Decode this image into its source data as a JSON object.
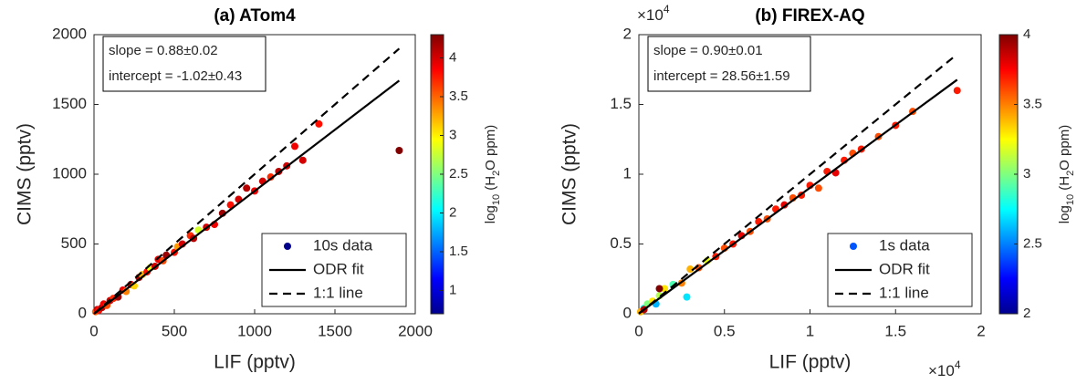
{
  "chart_data": [
    {
      "type": "scatter",
      "title": "(a) ATom4",
      "x_label": "LIF (pptv)",
      "y_label": "CIMS (pptv)",
      "xlim": [
        0,
        2000
      ],
      "ylim": [
        0,
        2000
      ],
      "xticks": [
        0,
        500,
        1000,
        1500,
        2000
      ],
      "yticks": [
        0,
        500,
        1000,
        1500,
        2000
      ],
      "annotations": [
        "slope = 0.88±0.02",
        "intercept = -1.02±0.43"
      ],
      "colorbar_label": [
        "log",
        "10",
        " (H",
        "2",
        "O ppm)"
      ],
      "clim": [
        0.7,
        4.3
      ],
      "cticks": [
        1,
        1.5,
        2,
        2.5,
        3,
        3.5,
        4
      ],
      "legend": "lower right",
      "series": [
        {
          "name": "10s data",
          "color": "#00008b",
          "x": [
            10,
            20,
            30,
            50,
            60,
            80,
            100,
            120,
            150,
            180,
            200,
            230,
            250,
            280,
            300,
            330,
            350,
            380,
            400,
            430,
            450,
            500,
            520,
            550,
            600,
            620,
            650,
            700,
            750,
            800,
            850,
            900,
            950,
            1000,
            1050,
            1100,
            1150,
            1200,
            1250,
            1300,
            1400,
            1900
          ],
          "values": [
            15,
            30,
            25,
            45,
            70,
            60,
            95,
            110,
            120,
            170,
            160,
            210,
            200,
            260,
            280,
            300,
            330,
            340,
            390,
            380,
            420,
            440,
            480,
            500,
            560,
            540,
            600,
            620,
            640,
            720,
            780,
            820,
            900,
            880,
            950,
            980,
            1020,
            1060,
            1200,
            1100,
            1360,
            1170
          ],
          "c": [
            3.5,
            4.0,
            3.8,
            4.1,
            3.9,
            3.6,
            4.0,
            3.7,
            4.2,
            3.9,
            3.4,
            4.0,
            3.1,
            4.1,
            3.2,
            3.8,
            2.9,
            4.0,
            3.9,
            3.6,
            4.2,
            3.8,
            3.3,
            4.0,
            3.7,
            4.1,
            2.8,
            4.0,
            3.9,
            4.2,
            3.8,
            4.0,
            4.1,
            3.9,
            4.0,
            3.7,
            4.1,
            4.0,
            3.9,
            4.0,
            3.8,
            4.3
          ]
        },
        {
          "name": "ODR fit",
          "color": "#000000",
          "style": "solid",
          "x": [
            0,
            1900
          ],
          "values": [
            -1.02,
            1671
          ]
        },
        {
          "name": "1:1 line",
          "color": "#000000",
          "style": "dashed",
          "x": [
            0,
            1900
          ],
          "values": [
            0,
            1900
          ]
        }
      ]
    },
    {
      "type": "scatter",
      "title": "(b) FIREX-AQ",
      "x_label": "LIF (pptv)",
      "y_label": "CIMS (pptv)",
      "xlim": [
        0,
        20000
      ],
      "ylim": [
        0,
        20000
      ],
      "xticks": [
        0,
        {
          "value": 5000,
          "label": "0.5"
        },
        {
          "value": 10000,
          "label": "1"
        },
        {
          "value": 15000,
          "label": "1.5"
        },
        {
          "value": 20000,
          "label": "2"
        }
      ],
      "yticks": [
        0,
        {
          "value": 5000,
          "label": "0.5"
        },
        {
          "value": 10000,
          "label": "1"
        },
        {
          "value": 15000,
          "label": "1.5"
        },
        {
          "value": 20000,
          "label": "2"
        }
      ],
      "x_multiplier": {
        "base": "×10",
        "exponent": "4"
      },
      "y_multiplier": {
        "base": "×10",
        "exponent": "4"
      },
      "annotations": [
        "slope = 0.90±0.01",
        "intercept = 28.56±1.59"
      ],
      "colorbar_label": [
        "log",
        "10",
        " (H",
        "2",
        "O ppm)"
      ],
      "clim": [
        2,
        4
      ],
      "cticks": [
        2,
        2.5,
        3,
        3.5,
        4
      ],
      "legend": "lower right",
      "series": [
        {
          "name": "1s data",
          "color": "#0055ff",
          "x": [
            100,
            300,
            500,
            800,
            1000,
            1200,
            1500,
            2000,
            2500,
            2800,
            3000,
            3500,
            4000,
            4500,
            5000,
            5500,
            6000,
            6500,
            7000,
            7500,
            8000,
            8500,
            9000,
            9500,
            10000,
            10500,
            11000,
            11500,
            12000,
            12500,
            13000,
            14000,
            15000,
            16000,
            18600,
            300,
            1200
          ],
          "values": [
            150,
            400,
            700,
            900,
            700,
            1300,
            1800,
            2100,
            2200,
            1200,
            3200,
            3300,
            3800,
            4100,
            4700,
            5000,
            5600,
            5900,
            6600,
            6800,
            7500,
            7800,
            8300,
            8500,
            9200,
            9000,
            10200,
            10100,
            11000,
            11500,
            11800,
            12700,
            13500,
            14500,
            16000,
            300,
            1800
          ],
          "c": [
            3.4,
            2.8,
            3.0,
            3.3,
            2.6,
            3.1,
            3.3,
            2.9,
            3.5,
            2.7,
            3.4,
            3.6,
            3.2,
            3.7,
            3.6,
            3.7,
            3.8,
            3.6,
            3.7,
            3.6,
            3.7,
            3.8,
            3.6,
            3.7,
            3.7,
            3.6,
            3.7,
            3.8,
            3.7,
            3.6,
            3.7,
            3.6,
            3.7,
            3.6,
            3.7,
            3.9,
            4.0
          ]
        },
        {
          "name": "ODR fit",
          "color": "#000000",
          "style": "solid",
          "x": [
            0,
            18600
          ],
          "values": [
            28.56,
            16769
          ]
        },
        {
          "name": "1:1 line",
          "color": "#000000",
          "style": "dashed",
          "x": [
            0,
            18400
          ],
          "values": [
            0,
            18400
          ]
        }
      ]
    }
  ]
}
